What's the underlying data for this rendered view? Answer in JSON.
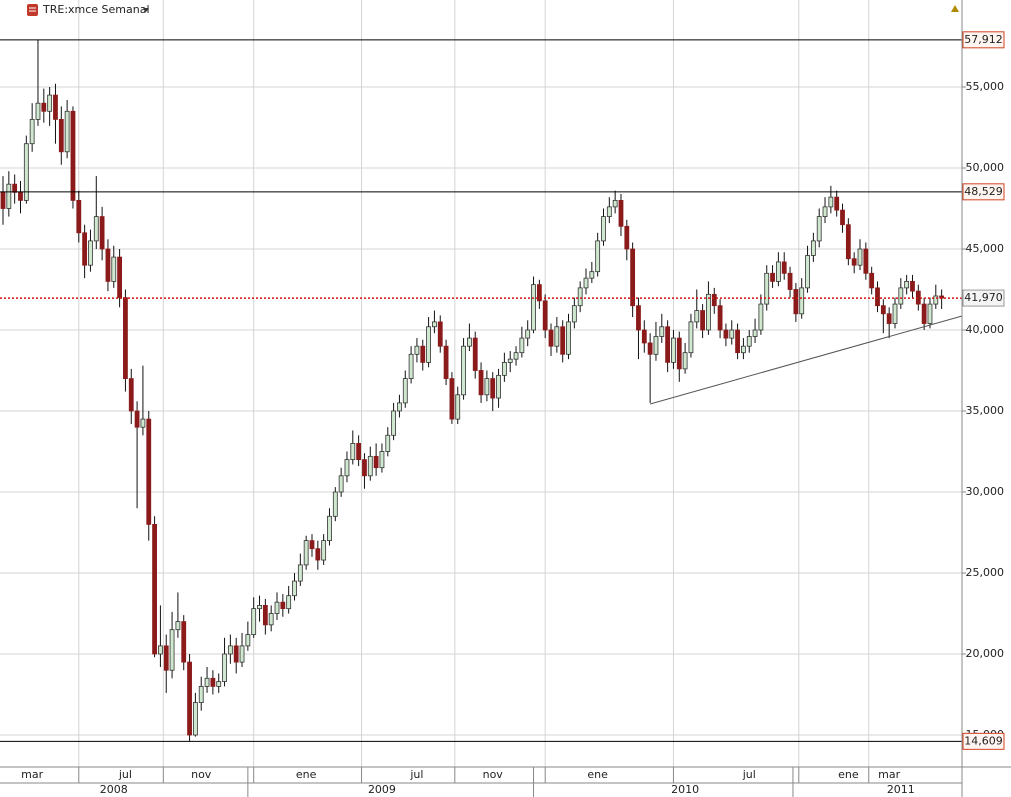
{
  "chart_data": {
    "type": "candlestick",
    "title": "TRE:xmce Semanal",
    "ylim": [
      13025,
      60370
    ],
    "yticks": [
      {
        "value": 15000,
        "label": "15,000"
      },
      {
        "value": 20000,
        "label": "20,000"
      },
      {
        "value": 25000,
        "label": "25,000"
      },
      {
        "value": 30000,
        "label": "30,000"
      },
      {
        "value": 35000,
        "label": "35,000"
      },
      {
        "value": 40000,
        "label": "40,000"
      },
      {
        "value": 45000,
        "label": "45,000"
      },
      {
        "value": 50000,
        "label": "50,000"
      },
      {
        "value": 55000,
        "label": "55,000"
      }
    ],
    "grid": true,
    "up_color": "#cfe8cf",
    "down_color": "#8b1a1a",
    "levels": [
      {
        "value": 57912,
        "label": "57,912"
      },
      {
        "value": 48529,
        "label": "48,529"
      },
      {
        "value": 14609,
        "label": "14,609"
      }
    ],
    "last_price": {
      "value": 41970,
      "label": "41,970"
    },
    "trendline": {
      "x": [
        111,
        164.5
      ],
      "y": [
        35432,
        40864
      ]
    },
    "months": [
      null,
      null,
      null,
      null,
      null,
      "mar",
      null,
      null,
      null,
      null,
      null,
      null,
      null,
      null,
      null,
      null,
      null,
      null,
      null,
      null,
      null,
      "jul",
      null,
      null,
      null,
      null,
      null,
      null,
      null,
      null,
      null,
      null,
      null,
      null,
      "nov",
      null,
      null,
      null,
      null,
      null,
      null,
      null,
      null,
      null,
      null,
      null,
      null,
      null,
      null,
      null,
      null,
      null,
      "ene",
      null,
      null,
      null,
      null,
      null,
      null,
      null,
      null,
      null,
      null,
      null,
      null,
      null,
      null,
      null,
      null,
      null,
      null,
      "jul",
      null,
      null,
      null,
      null,
      null,
      null,
      null,
      null,
      null,
      null,
      null,
      null,
      "nov",
      null,
      null,
      null,
      null,
      null,
      null,
      null,
      null,
      null,
      null,
      null,
      null,
      null,
      null,
      null,
      null,
      null,
      "ene",
      null,
      null,
      null,
      null,
      null,
      null,
      null,
      null,
      null,
      null,
      null,
      null,
      null,
      null,
      null,
      null,
      null,
      null,
      null,
      null,
      null,
      null,
      null,
      null,
      null,
      "jul",
      null,
      null,
      null,
      null,
      null,
      null,
      null,
      null,
      null,
      null,
      null,
      null,
      null,
      null,
      null,
      null,
      "ene",
      null,
      null,
      null,
      null,
      null,
      null,
      "mar",
      null,
      null,
      null,
      null,
      null,
      null,
      null
    ],
    "years": [
      null,
      null,
      null,
      null,
      null,
      null,
      null,
      null,
      null,
      null,
      null,
      null,
      null,
      null,
      null,
      null,
      null,
      null,
      null,
      "2008",
      null,
      null,
      null,
      null,
      null,
      null,
      null,
      null,
      null,
      null,
      null,
      null,
      null,
      null,
      null,
      null,
      null,
      null,
      null,
      null,
      null,
      null,
      null,
      null,
      null,
      null,
      null,
      null,
      null,
      null,
      null,
      null,
      null,
      null,
      null,
      null,
      null,
      null,
      null,
      null,
      null,
      null,
      null,
      null,
      null,
      "2009",
      null,
      null,
      null,
      null,
      null,
      null,
      null,
      null,
      null,
      null,
      null,
      null,
      null,
      null,
      null,
      null,
      null,
      null,
      null,
      null,
      null,
      null,
      null,
      null,
      null,
      null,
      null,
      null,
      null,
      null,
      null,
      null,
      null,
      null,
      null,
      null,
      null,
      null,
      null,
      null,
      null,
      null,
      null,
      null,
      null,
      null,
      null,
      null,
      null,
      null,
      null,
      "2010",
      null,
      null,
      null,
      null,
      null,
      null,
      null,
      null,
      null,
      null,
      null,
      null,
      null,
      null,
      null,
      null,
      null,
      null,
      null,
      null,
      null,
      null,
      null,
      null,
      null,
      null,
      null,
      null,
      null,
      null,
      null,
      null,
      null,
      null,
      null,
      null,
      "2011",
      null,
      null,
      null,
      null,
      null,
      null,
      null
    ],
    "ohlc": [
      [
        48500,
        49500,
        46500,
        47500
      ],
      [
        47500,
        49800,
        47000,
        49000
      ],
      [
        49000,
        49600,
        47800,
        48500
      ],
      [
        48500,
        49200,
        47200,
        48000
      ],
      [
        48000,
        52000,
        47800,
        51500
      ],
      [
        51500,
        54000,
        51000,
        53000
      ],
      [
        53000,
        57912,
        52600,
        54000
      ],
      [
        54000,
        54900,
        52800,
        53500
      ],
      [
        53500,
        55000,
        52600,
        54500
      ],
      [
        54500,
        55200,
        51500,
        53000
      ],
      [
        53000,
        53800,
        50200,
        51000
      ],
      [
        51000,
        54200,
        50600,
        53500
      ],
      [
        53500,
        53800,
        47500,
        48000
      ],
      [
        48000,
        48600,
        45400,
        46000
      ],
      [
        46000,
        46500,
        43200,
        44000
      ],
      [
        44000,
        46200,
        43600,
        45500
      ],
      [
        45500,
        49500,
        45000,
        47000
      ],
      [
        47000,
        47600,
        44300,
        45000
      ],
      [
        45000,
        45600,
        42400,
        43000
      ],
      [
        43000,
        45200,
        42600,
        44500
      ],
      [
        44500,
        45000,
        41400,
        42000
      ],
      [
        42000,
        42500,
        36200,
        37000
      ],
      [
        37000,
        37600,
        34200,
        35000
      ],
      [
        35000,
        35600,
        29000,
        34000
      ],
      [
        34000,
        37800,
        33500,
        34500
      ],
      [
        34500,
        35000,
        27000,
        28000
      ],
      [
        28000,
        28500,
        19800,
        20000
      ],
      [
        20000,
        23000,
        19200,
        20500
      ],
      [
        20500,
        21200,
        17600,
        19000
      ],
      [
        19000,
        22600,
        18500,
        21500
      ],
      [
        21500,
        23800,
        21000,
        22000
      ],
      [
        22000,
        22400,
        19000,
        19500
      ],
      [
        19500,
        20000,
        14609,
        15000
      ],
      [
        15000,
        17600,
        14900,
        17000
      ],
      [
        17000,
        18600,
        16500,
        18000
      ],
      [
        18000,
        19200,
        17600,
        18500
      ],
      [
        18500,
        19000,
        17500,
        18000
      ],
      [
        18000,
        18800,
        17600,
        18300
      ],
      [
        18300,
        21000,
        18000,
        20000
      ],
      [
        20000,
        21200,
        19400,
        20500
      ],
      [
        20500,
        21000,
        18800,
        19500
      ],
      [
        19500,
        21300,
        19200,
        20500
      ],
      [
        20500,
        22000,
        20200,
        21200
      ],
      [
        21200,
        23500,
        21000,
        22800
      ],
      [
        22800,
        23600,
        22000,
        23000
      ],
      [
        23000,
        23400,
        21200,
        21800
      ],
      [
        21800,
        23000,
        21400,
        22500
      ],
      [
        22500,
        23800,
        22100,
        23200
      ],
      [
        23200,
        23700,
        22300,
        22800
      ],
      [
        22800,
        24200,
        22500,
        23600
      ],
      [
        23600,
        25000,
        23300,
        24500
      ],
      [
        24500,
        26200,
        24200,
        25500
      ],
      [
        25500,
        27300,
        25200,
        27000
      ],
      [
        27000,
        27400,
        26000,
        26500
      ],
      [
        26500,
        27000,
        25200,
        25800
      ],
      [
        25800,
        27400,
        25500,
        27000
      ],
      [
        27000,
        29000,
        26700,
        28500
      ],
      [
        28500,
        30300,
        28200,
        30000
      ],
      [
        30000,
        31500,
        29700,
        31000
      ],
      [
        31000,
        32500,
        30600,
        32000
      ],
      [
        32000,
        33800,
        31700,
        33000
      ],
      [
        33000,
        33500,
        31600,
        32000
      ],
      [
        32000,
        32400,
        30200,
        31000
      ],
      [
        31000,
        32800,
        30700,
        32200
      ],
      [
        32200,
        33000,
        31000,
        31500
      ],
      [
        31500,
        33000,
        31200,
        32500
      ],
      [
        32500,
        34000,
        32200,
        33500
      ],
      [
        33500,
        35500,
        33200,
        35000
      ],
      [
        35000,
        36000,
        34600,
        35500
      ],
      [
        35500,
        37500,
        35200,
        37000
      ],
      [
        37000,
        39000,
        36700,
        38500
      ],
      [
        38500,
        39500,
        38000,
        39000
      ],
      [
        39000,
        39400,
        37500,
        38000
      ],
      [
        38000,
        40800,
        37700,
        40200
      ],
      [
        40200,
        41200,
        39800,
        40500
      ],
      [
        40500,
        40900,
        38600,
        39000
      ],
      [
        39000,
        39400,
        36600,
        37000
      ],
      [
        37000,
        37400,
        34200,
        34500
      ],
      [
        34500,
        36500,
        34200,
        36000
      ],
      [
        36000,
        39500,
        35700,
        39000
      ],
      [
        39000,
        40400,
        38700,
        39500
      ],
      [
        39500,
        39900,
        37000,
        37500
      ],
      [
        37500,
        38000,
        35500,
        36000
      ],
      [
        36000,
        37500,
        35600,
        37000
      ],
      [
        37000,
        37400,
        35000,
        35800
      ],
      [
        35800,
        37600,
        35200,
        37200
      ],
      [
        37200,
        38600,
        36800,
        38000
      ],
      [
        38000,
        38700,
        37400,
        38200
      ],
      [
        38200,
        39000,
        37800,
        38600
      ],
      [
        38600,
        40200,
        38300,
        39500
      ],
      [
        39500,
        40600,
        39000,
        40000
      ],
      [
        40000,
        43300,
        39800,
        42800
      ],
      [
        42800,
        43100,
        41300,
        41800
      ],
      [
        41800,
        42200,
        39500,
        40000
      ],
      [
        40000,
        40400,
        38400,
        39000
      ],
      [
        39000,
        40800,
        38600,
        40200
      ],
      [
        40200,
        40600,
        38000,
        38500
      ],
      [
        38500,
        41000,
        38200,
        40500
      ],
      [
        40500,
        42000,
        40100,
        41500
      ],
      [
        41500,
        43000,
        41100,
        42600
      ],
      [
        42600,
        43800,
        42200,
        43200
      ],
      [
        43200,
        44200,
        42900,
        43600
      ],
      [
        43600,
        46000,
        43300,
        45500
      ],
      [
        45500,
        47500,
        45200,
        47000
      ],
      [
        47000,
        48200,
        46600,
        47600
      ],
      [
        47600,
        48600,
        47200,
        48000
      ],
      [
        48000,
        48400,
        45800,
        46400
      ],
      [
        46400,
        46800,
        44300,
        45000
      ],
      [
        45000,
        45400,
        40800,
        41500
      ],
      [
        41500,
        42000,
        38200,
        40000
      ],
      [
        40000,
        40600,
        38600,
        39200
      ],
      [
        39200,
        39800,
        35500,
        38500
      ],
      [
        38500,
        40500,
        38100,
        39600
      ],
      [
        39600,
        41000,
        39200,
        40200
      ],
      [
        40200,
        40600,
        37400,
        38000
      ],
      [
        38000,
        40000,
        37600,
        39500
      ],
      [
        39500,
        39900,
        36800,
        37600
      ],
      [
        37600,
        39200,
        37300,
        38600
      ],
      [
        38600,
        41000,
        38300,
        40500
      ],
      [
        40500,
        42500,
        40100,
        41200
      ],
      [
        41200,
        41600,
        39500,
        40000
      ],
      [
        40000,
        43000,
        39700,
        42200
      ],
      [
        42200,
        42600,
        41000,
        41500
      ],
      [
        41500,
        41900,
        39500,
        40000
      ],
      [
        40000,
        40400,
        39000,
        39500
      ],
      [
        39500,
        40600,
        39100,
        40000
      ],
      [
        40000,
        40400,
        38200,
        38600
      ],
      [
        38600,
        39500,
        38200,
        39000
      ],
      [
        39000,
        40000,
        38600,
        39600
      ],
      [
        39600,
        40700,
        39200,
        40000
      ],
      [
        40000,
        42200,
        39700,
        41600
      ],
      [
        41600,
        44000,
        41200,
        43500
      ],
      [
        43500,
        44000,
        42600,
        43000
      ],
      [
        43000,
        44800,
        42700,
        44200
      ],
      [
        44200,
        44800,
        43100,
        43500
      ],
      [
        43500,
        43900,
        42000,
        42500
      ],
      [
        42500,
        42900,
        40500,
        41000
      ],
      [
        41000,
        43200,
        40700,
        42600
      ],
      [
        42600,
        45200,
        42300,
        44600
      ],
      [
        44600,
        46000,
        44200,
        45500
      ],
      [
        45500,
        47500,
        45100,
        47000
      ],
      [
        47000,
        48200,
        46600,
        47600
      ],
      [
        47600,
        48900,
        47200,
        48200
      ],
      [
        48200,
        48600,
        47000,
        47400
      ],
      [
        47400,
        47800,
        46000,
        46500
      ],
      [
        46500,
        46900,
        44000,
        44400
      ],
      [
        44400,
        44800,
        43500,
        44000
      ],
      [
        44000,
        45600,
        43700,
        45000
      ],
      [
        45000,
        45400,
        43100,
        43500
      ],
      [
        43500,
        43900,
        42200,
        42600
      ],
      [
        42600,
        43000,
        41100,
        41500
      ],
      [
        41500,
        41900,
        39800,
        41000
      ],
      [
        41000,
        41400,
        39500,
        40400
      ],
      [
        40400,
        42000,
        40100,
        41600
      ],
      [
        41600,
        43200,
        41300,
        42600
      ],
      [
        42600,
        43400,
        42200,
        43000
      ],
      [
        43000,
        43400,
        42000,
        42400
      ],
      [
        42400,
        42800,
        41200,
        41600
      ],
      [
        41600,
        42000,
        40000,
        40400
      ],
      [
        40400,
        42000,
        40100,
        41600
      ],
      [
        41600,
        42800,
        41300,
        42100
      ],
      [
        42100,
        42500,
        41300,
        41970
      ]
    ]
  }
}
